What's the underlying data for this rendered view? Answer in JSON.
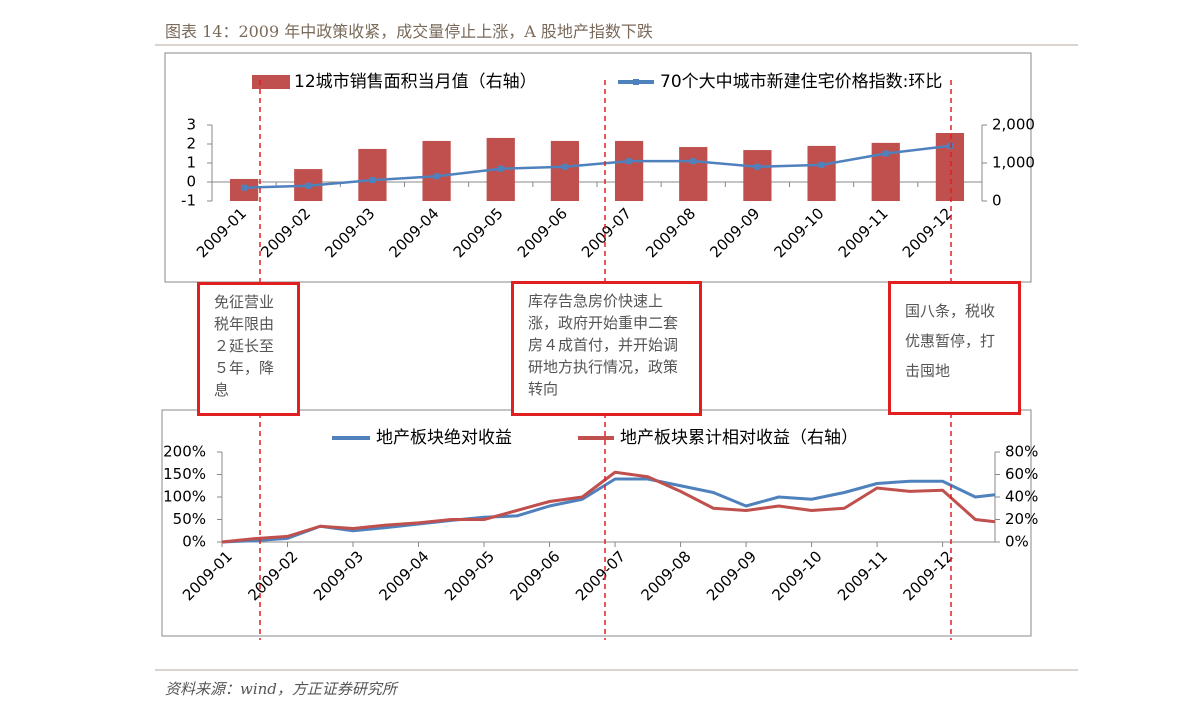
{
  "header": {
    "title": "图表 14：2009 年中政策收紧，成交量停止上涨，A 股地产指数下跌"
  },
  "chart_data": [
    {
      "type": "bar-line",
      "categories": [
        "2009-01",
        "2009-02",
        "2009-03",
        "2009-04",
        "2009-05",
        "2009-06",
        "2009-07",
        "2009-08",
        "2009-09",
        "2009-10",
        "2009-11",
        "2009-12"
      ],
      "series": [
        {
          "name": "12城市销售面积当月值（右轴）",
          "type": "bar",
          "axis": "y2",
          "color": "#c0504d",
          "values": [
            580,
            840,
            1370,
            1580,
            1660,
            1580,
            1580,
            1420,
            1340,
            1450,
            1530,
            1790
          ]
        },
        {
          "name": "70个大中城市新建住宅价格指数:环比",
          "type": "line",
          "axis": "y",
          "color": "#4f81bd",
          "values": [
            -0.3,
            -0.2,
            0.1,
            0.3,
            0.7,
            0.8,
            1.1,
            1.1,
            0.8,
            0.9,
            1.5,
            1.9
          ]
        }
      ],
      "ylim": [
        -1,
        3
      ],
      "yticks": [
        -1,
        0,
        1,
        2,
        3
      ],
      "y2lim": [
        0,
        2000
      ],
      "y2ticks": [
        0,
        {
          "value": 1000,
          "label": "1,000"
        },
        {
          "value": 2000,
          "label": "2,000"
        }
      ],
      "legend": "top"
    },
    {
      "type": "line",
      "x": [
        0,
        0.5,
        1,
        1.5,
        2,
        2.5,
        3,
        3.5,
        4,
        4.5,
        5,
        5.5,
        6,
        6.5,
        7,
        7.5,
        8,
        8.5,
        9,
        9.5,
        10,
        10.5,
        11,
        11.5,
        11.8
      ],
      "series": [
        {
          "name": "地产板块绝对收益",
          "axis": "y",
          "color": "#4f81bd",
          "values": [
            0,
            3,
            8,
            35,
            25,
            32,
            40,
            48,
            55,
            58,
            80,
            95,
            140,
            140,
            125,
            110,
            80,
            100,
            95,
            110,
            130,
            135,
            135,
            100,
            105
          ]
        },
        {
          "name": "地产板块累计相对收益（右轴）",
          "axis": "y2",
          "color": "#c0504d",
          "values": [
            0,
            3,
            5,
            14,
            12,
            15,
            17,
            20,
            20,
            28,
            36,
            40,
            62,
            58,
            45,
            30,
            28,
            32,
            28,
            30,
            48,
            45,
            46,
            20,
            18
          ]
        }
      ],
      "xlim": [
        0,
        11.8
      ],
      "xticks": [
        {
          "value": 0,
          "label": "2009-01"
        },
        {
          "value": 1,
          "label": "2009-02"
        },
        {
          "value": 2,
          "label": "2009-03"
        },
        {
          "value": 3,
          "label": "2009-04"
        },
        {
          "value": 4,
          "label": "2009-05"
        },
        {
          "value": 5,
          "label": "2009-06"
        },
        {
          "value": 6,
          "label": "2009-07"
        },
        {
          "value": 7,
          "label": "2009-08"
        },
        {
          "value": 8,
          "label": "2009-09"
        },
        {
          "value": 9,
          "label": "2009-10"
        },
        {
          "value": 10,
          "label": "2009-11"
        },
        {
          "value": 11,
          "label": "2009-12"
        }
      ],
      "ylim": [
        0,
        200
      ],
      "yticks": [
        {
          "value": 0,
          "label": "0%"
        },
        {
          "value": 50,
          "label": "50%"
        },
        {
          "value": 100,
          "label": "100%"
        },
        {
          "value": 150,
          "label": "150%"
        },
        {
          "value": 200,
          "label": "200%"
        }
      ],
      "y2lim": [
        0,
        80
      ],
      "y2ticks": [
        {
          "value": 0,
          "label": "0%"
        },
        {
          "value": 20,
          "label": "20%"
        },
        {
          "value": 40,
          "label": "40%"
        },
        {
          "value": 60,
          "label": "60%"
        },
        {
          "value": 80,
          "label": "80%"
        }
      ],
      "legend": "top"
    }
  ],
  "annotations": [
    {
      "text": "免征营业税年限由２延长至５年，降息"
    },
    {
      "text": "库存告急房价快速上涨，政府开始重申二套房４成首付，并开始调研地方执行情况，政策转向"
    },
    {
      "text": "国八条，税收优惠暂停，打击囤地"
    }
  ],
  "source": "资料来源：wind，方正证券研究所"
}
